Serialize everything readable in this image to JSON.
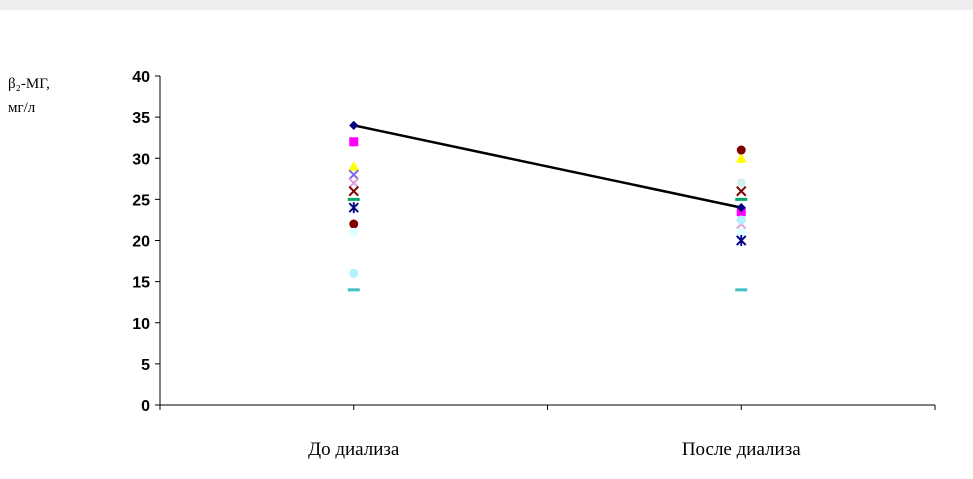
{
  "chart_data": {
    "type": "line",
    "ylabel_line1": "β₂-МГ,",
    "ylabel_line2": "мг/л",
    "ylim": [
      0,
      40
    ],
    "ytick_step": 5,
    "categories": [
      "До диализа",
      "После диализа"
    ],
    "grid": false,
    "mean_line": {
      "values": [
        34,
        24
      ],
      "color": "#000000"
    },
    "points": [
      {
        "values": [
          34,
          24
        ],
        "marker": "diamond",
        "color": "#000080"
      },
      {
        "values": [
          32,
          23.5
        ],
        "marker": "square",
        "color": "#ff00ff"
      },
      {
        "values": [
          29,
          30
        ],
        "marker": "triangle",
        "color": "#ffff00"
      },
      {
        "values": [
          28,
          20
        ],
        "marker": "x",
        "color": "#7b68ee"
      },
      {
        "values": [
          27,
          22
        ],
        "marker": "x",
        "color": "#dda0dd"
      },
      {
        "values": [
          26,
          26
        ],
        "marker": "x",
        "color": "#800000"
      },
      {
        "values": [
          25,
          25
        ],
        "marker": "dash",
        "color": "#00a86b"
      },
      {
        "values": [
          22,
          31
        ],
        "marker": "circle",
        "color": "#800000"
      },
      {
        "values": [
          21,
          21
        ],
        "marker": "circle",
        "color": "#e0ffff"
      },
      {
        "values": [
          24,
          27
        ],
        "marker": "circle",
        "color": "#d0f0f0"
      },
      {
        "values": [
          16,
          22.5
        ],
        "marker": "circle",
        "color": "#b0f0ff"
      },
      {
        "values": [
          14,
          14
        ],
        "marker": "dash",
        "color": "#40c0c0"
      },
      {
        "values": [
          24,
          20
        ],
        "marker": "asterisk",
        "color": "#000080"
      }
    ]
  }
}
